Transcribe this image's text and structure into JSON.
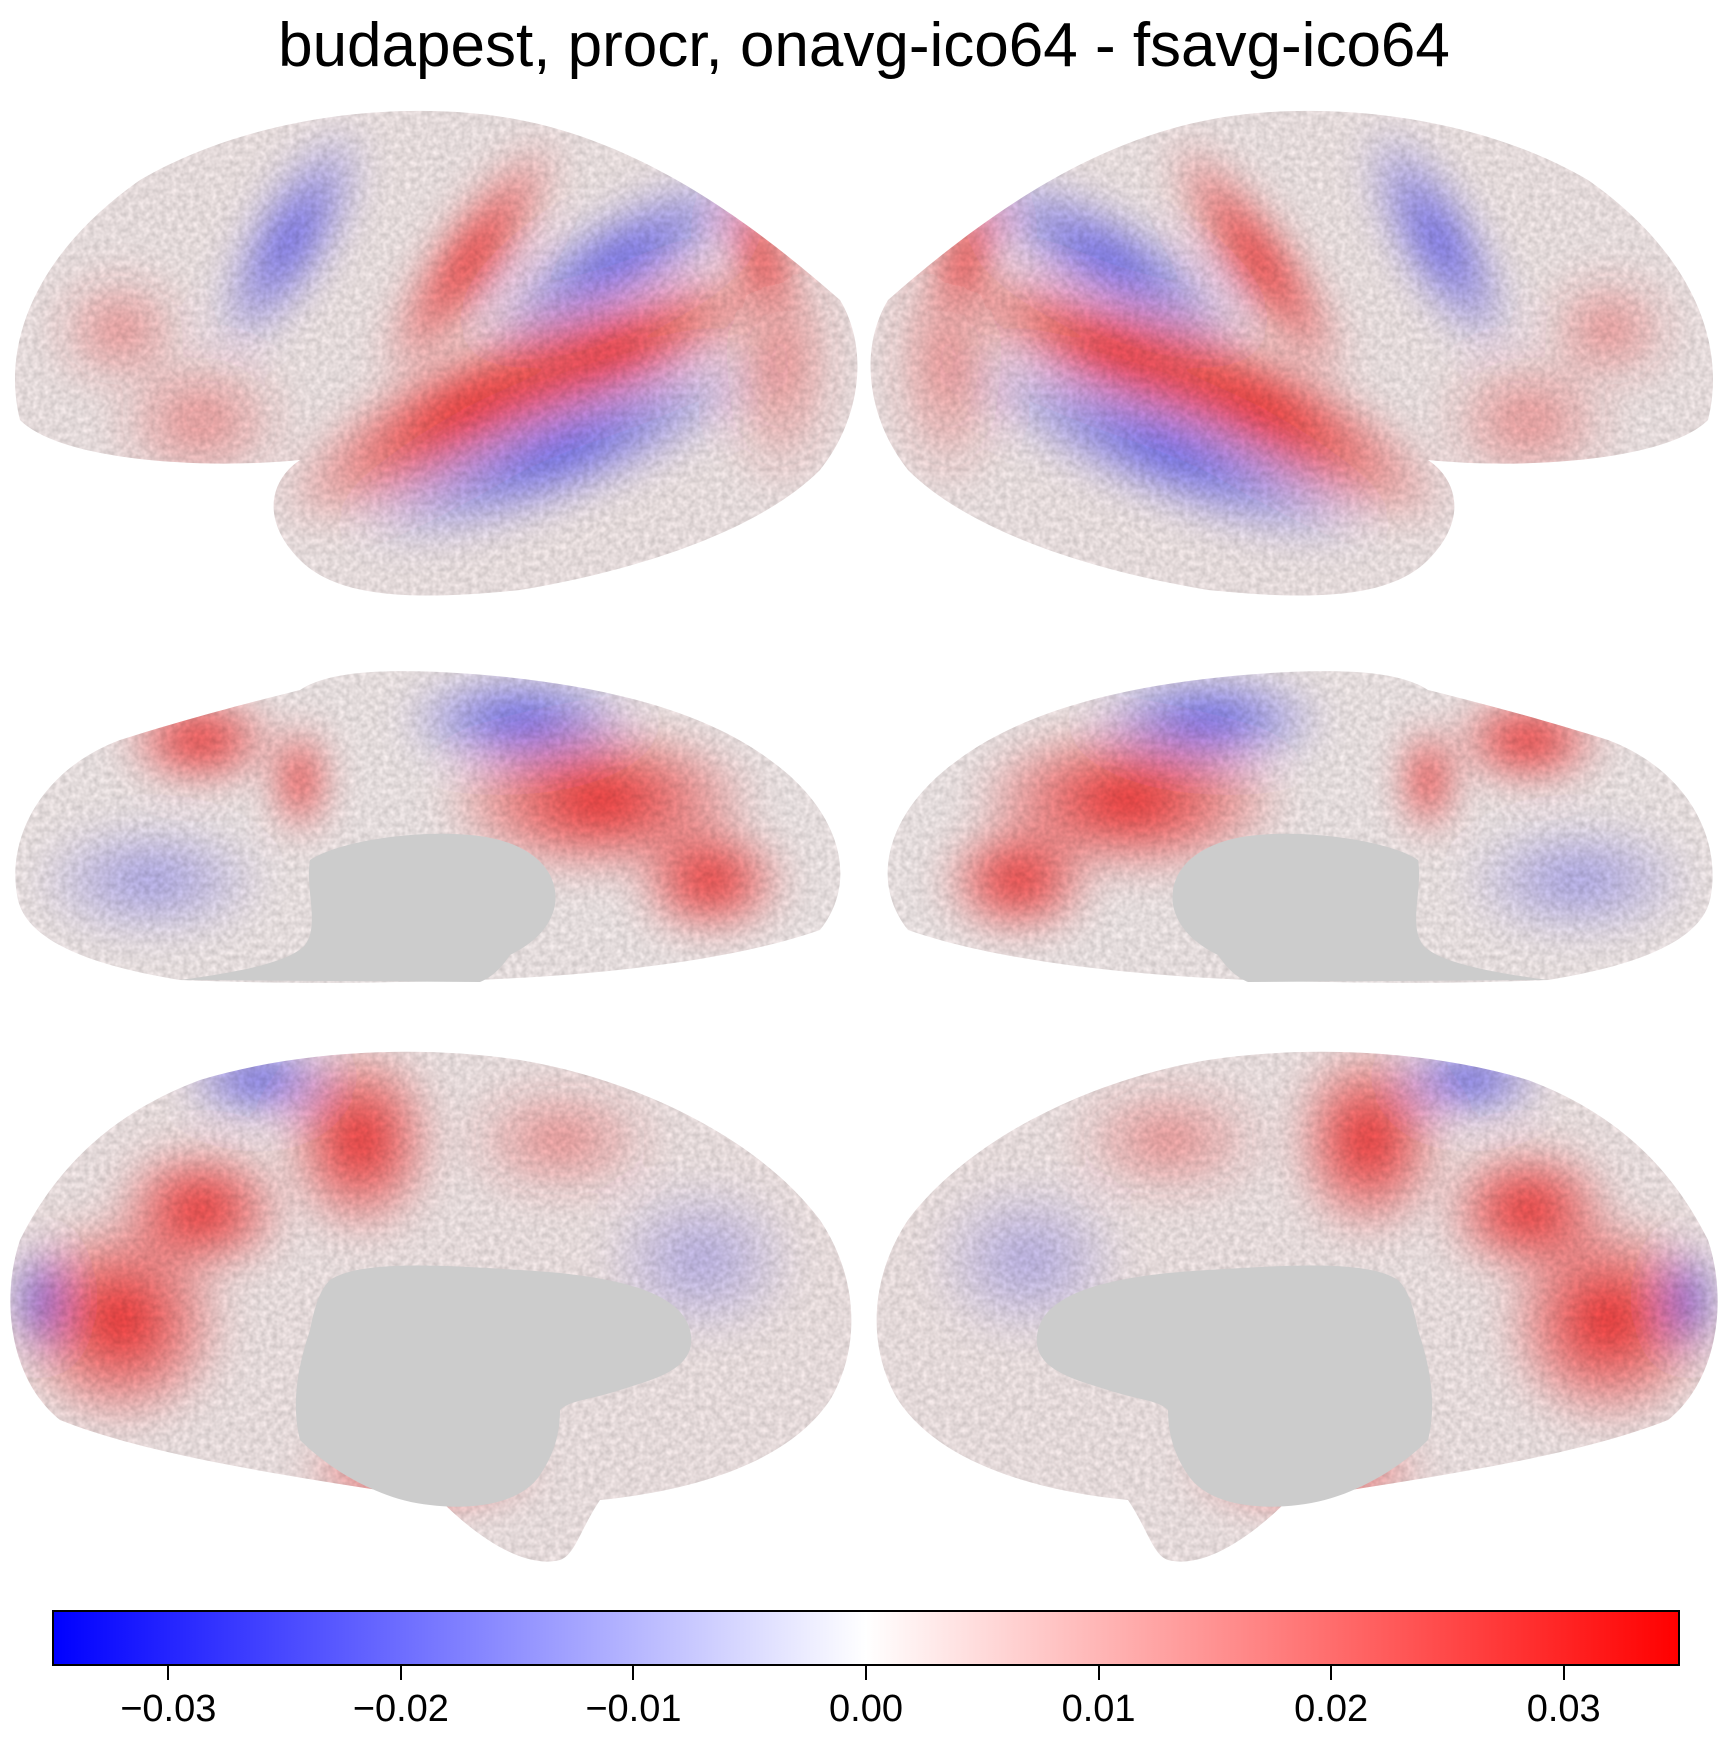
{
  "title": "budapest, procr, onavg-ico64 - fsavg-ico64",
  "colorbar": {
    "vmin": -0.035,
    "vmax": 0.035,
    "colors": {
      "low": "#0000ff",
      "mid": "#ffffff",
      "high": "#ff0000",
      "mask": "#cccccc"
    },
    "ticks": [
      {
        "value": -0.03,
        "label": "−0.03"
      },
      {
        "value": -0.02,
        "label": "−0.02"
      },
      {
        "value": -0.01,
        "label": "−0.01"
      },
      {
        "value": 0.0,
        "label": "0.00"
      },
      {
        "value": 0.01,
        "label": "0.01"
      },
      {
        "value": 0.02,
        "label": "0.02"
      },
      {
        "value": 0.03,
        "label": "0.03"
      }
    ]
  },
  "views": [
    {
      "hemisphere": "left",
      "view": "lateral"
    },
    {
      "hemisphere": "right",
      "view": "lateral"
    },
    {
      "hemisphere": "left",
      "view": "ventral"
    },
    {
      "hemisphere": "right",
      "view": "ventral"
    },
    {
      "hemisphere": "left",
      "view": "medial"
    },
    {
      "hemisphere": "right",
      "view": "medial"
    }
  ]
}
